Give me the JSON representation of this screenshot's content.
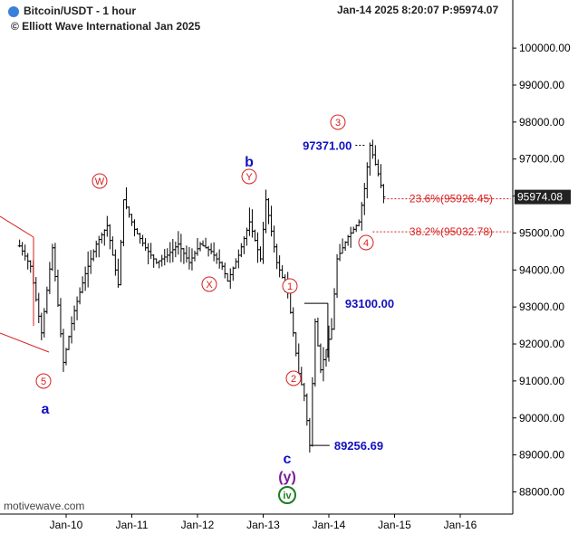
{
  "header": {
    "symbol_title": "Bitcoin/USDT - 1 hour",
    "copyright": "© Elliott Wave International Jan 2025",
    "timestamp": "Jan-14 2025  8:20:07  P:95974.07"
  },
  "watermark": "motivewave.com",
  "colors": {
    "title_dot": "#3a7fd9",
    "candles": "#000000",
    "wave_red": "#d81e1e",
    "wave_blue": "#1010c0",
    "wave_purple": "#7a1e9a",
    "wave_green": "#1a7f1a",
    "price_tag_bg": "#222222"
  },
  "chart_data": {
    "type": "line",
    "title": "Bitcoin/USDT - 1 hour",
    "xlabel": "",
    "ylabel": "",
    "x_ticks": [
      "Jan-10",
      "Jan-11",
      "Jan-12",
      "Jan-13",
      "Jan-14",
      "Jan-15",
      "Jan-16"
    ],
    "y_ticks": [
      88000,
      89000,
      90000,
      91000,
      92000,
      93000,
      94000,
      95000,
      96000,
      97000,
      98000,
      99000,
      100000
    ],
    "y_tick_labels": [
      "88000.00",
      "89000.00",
      "90000.00",
      "91000.00",
      "92000.00",
      "93000.00",
      "94000.00",
      "95000.00",
      "96000.00",
      "97000.00",
      "98000.00",
      "99000.00",
      "100000.00"
    ],
    "ylim": [
      87400,
      101300
    ],
    "last_price": 95974.07,
    "last_price_label": "95974.08",
    "series": [
      {
        "name": "",
        "points": [
          [
            "Jan-09 07:00",
            94650
          ],
          [
            "Jan-09 11:00",
            94100
          ],
          [
            "Jan-09 15:00",
            92300
          ],
          [
            "Jan-09 19:00",
            94600
          ],
          [
            "Jan-09 23:00",
            91500
          ],
          [
            "Jan-10 03:00",
            92900
          ],
          [
            "Jan-10 07:00",
            93900
          ],
          [
            "Jan-10 11:00",
            94700
          ],
          [
            "Jan-10 15:00",
            95200
          ],
          [
            "Jan-10 19:00",
            93600
          ],
          [
            "Jan-10 21:00",
            95900
          ],
          [
            "Jan-11 01:00",
            95100
          ],
          [
            "Jan-11 05:00",
            94600
          ],
          [
            "Jan-11 09:00",
            94200
          ],
          [
            "Jan-11 13:00",
            94400
          ],
          [
            "Jan-11 17:00",
            94700
          ],
          [
            "Jan-11 21:00",
            94200
          ],
          [
            "Jan-12 01:00",
            94700
          ],
          [
            "Jan-12 05:00",
            94500
          ],
          [
            "Jan-12 09:00",
            94100
          ],
          [
            "Jan-12 11:00",
            93700
          ],
          [
            "Jan-12 15:00",
            94400
          ],
          [
            "Jan-12 19:00",
            95300
          ],
          [
            "Jan-12 23:00",
            94300
          ],
          [
            "Jan-13 01:00",
            95900
          ],
          [
            "Jan-13 05:00",
            94200
          ],
          [
            "Jan-13 09:00",
            93400
          ],
          [
            "Jan-13 13:00",
            91200
          ],
          [
            "Jan-13 15:00",
            90600
          ],
          [
            "Jan-13 17:00",
            89257
          ],
          [
            "Jan-13 19:00",
            92600
          ],
          [
            "Jan-13 21:00",
            91300
          ],
          [
            "Jan-14 01:00",
            92400
          ],
          [
            "Jan-14 03:00",
            94300
          ],
          [
            "Jan-14 07:00",
            94900
          ],
          [
            "Jan-14 11:00",
            95300
          ],
          [
            "Jan-14 13:00",
            96200
          ],
          [
            "Jan-14 15:00",
            97371
          ],
          [
            "Jan-14 18:00",
            96600
          ],
          [
            "Jan-14 20:00",
            95974
          ]
        ]
      }
    ],
    "price_labels": [
      {
        "text": "97371.00",
        "value": 97371.0
      },
      {
        "text": "93100.00",
        "value": 93100.0
      },
      {
        "text": "89256.69",
        "value": 89256.69
      }
    ],
    "fibonacci_levels": [
      {
        "text": "23.6%(95926.45)",
        "value": 95926.45
      },
      {
        "text": "38.2%(95032.78)",
        "value": 95032.78
      }
    ],
    "wave_labels": [
      {
        "text": "5",
        "style": "circle-red"
      },
      {
        "text": "W",
        "style": "circle-red"
      },
      {
        "text": "X",
        "style": "circle-red"
      },
      {
        "text": "Y",
        "style": "circle-red"
      },
      {
        "text": "1",
        "style": "circle-red"
      },
      {
        "text": "2",
        "style": "circle-red"
      },
      {
        "text": "3",
        "style": "circle-red"
      },
      {
        "text": "4",
        "style": "circle-red"
      },
      {
        "text": "a",
        "style": "blue"
      },
      {
        "text": "b",
        "style": "blue"
      },
      {
        "text": "c",
        "style": "blue"
      },
      {
        "text": "(y)",
        "style": "purple"
      },
      {
        "text": "iv",
        "style": "circle-green"
      }
    ],
    "grid": false,
    "legend": "none"
  }
}
